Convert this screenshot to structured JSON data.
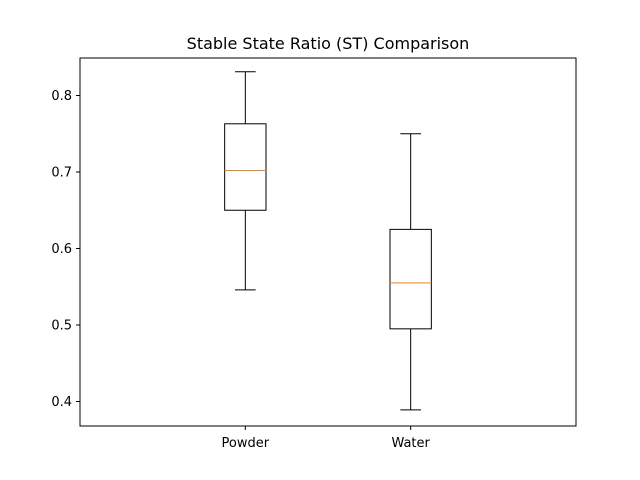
{
  "chart_data": {
    "type": "box",
    "title": "Stable State Ratio (ST) Comparison",
    "xlabel": "",
    "ylabel": "",
    "ylim": [
      0.368,
      0.849
    ],
    "yticks": [
      "0.4",
      "0.5",
      "0.6",
      "0.7",
      "0.8"
    ],
    "grid": false,
    "categories": [
      "Powder",
      "Water"
    ],
    "boxes": [
      {
        "category": "Powder",
        "whisker_low": 0.546,
        "q1": 0.65,
        "median": 0.702,
        "q3": 0.763,
        "whisker_high": 0.831
      },
      {
        "category": "Water",
        "whisker_low": 0.389,
        "q1": 0.495,
        "median": 0.555,
        "q3": 0.625,
        "whisker_high": 0.75
      }
    ],
    "colors": {
      "box": "#000000",
      "median": "#ff7f0e",
      "axes": "#000000"
    }
  }
}
